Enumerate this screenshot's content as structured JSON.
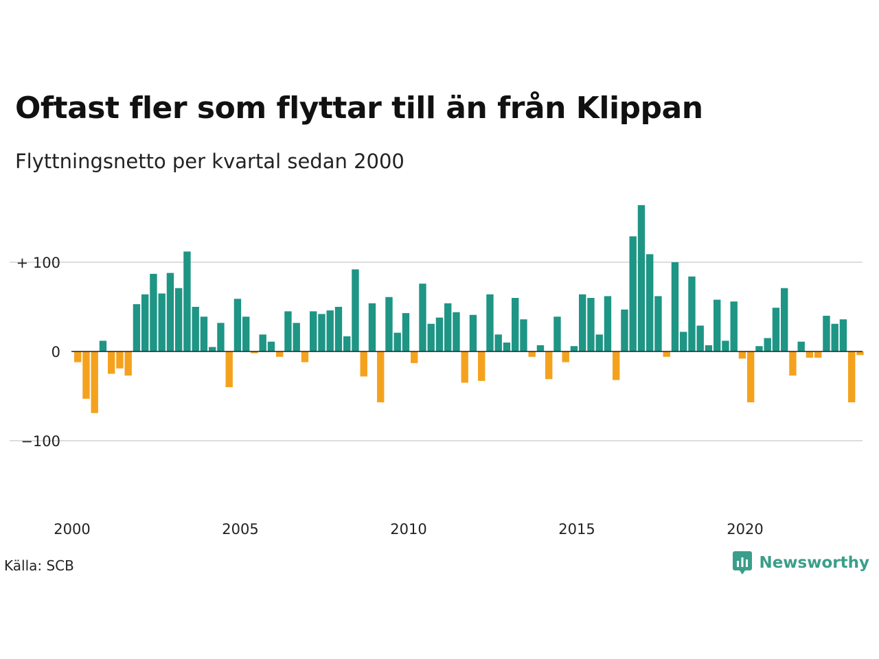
{
  "title": "Oftast fler som flyttar till än från Klippan",
  "subtitle": "Flyttningsnetto per kvartal sedan 2000",
  "source": "Källa: SCB",
  "brand": {
    "name": "Newsworthy",
    "icon": "newsworthy-logo-icon"
  },
  "colors": {
    "positive": "#1e9585",
    "negative": "#f4a21e",
    "grid": "#dddddd",
    "axis": "#222222"
  },
  "chart_data": {
    "type": "bar",
    "x_start": "2000 Q1",
    "frequency": "quarterly",
    "values": [
      -12,
      -53,
      -69,
      12,
      -25,
      -19,
      -27,
      53,
      64,
      87,
      65,
      88,
      71,
      112,
      50,
      39,
      5,
      32,
      -40,
      59,
      39,
      -2,
      19,
      11,
      -6,
      45,
      32,
      -12,
      45,
      42,
      46,
      50,
      17,
      92,
      -28,
      54,
      -57,
      61,
      21,
      43,
      -13,
      76,
      31,
      38,
      54,
      44,
      -35,
      41,
      -33,
      64,
      19,
      10,
      60,
      36,
      -6,
      7,
      -31,
      39,
      -12,
      6,
      64,
      60,
      19,
      62,
      -32,
      47,
      129,
      164,
      109,
      62,
      -6,
      100,
      22,
      84,
      29,
      7,
      58,
      12,
      56,
      -8,
      -57,
      6,
      15,
      49,
      71,
      -27,
      11,
      -7,
      -7,
      40,
      31,
      36,
      -57,
      -4
    ],
    "x_ticks": [
      "2000",
      "2005",
      "2010",
      "2015",
      "2020"
    ],
    "y_ticks": [
      "−100",
      "0",
      "+ 100"
    ],
    "y_tick_values": [
      -100,
      0,
      100
    ],
    "ylim": [
      -175,
      175
    ],
    "grid": true
  }
}
